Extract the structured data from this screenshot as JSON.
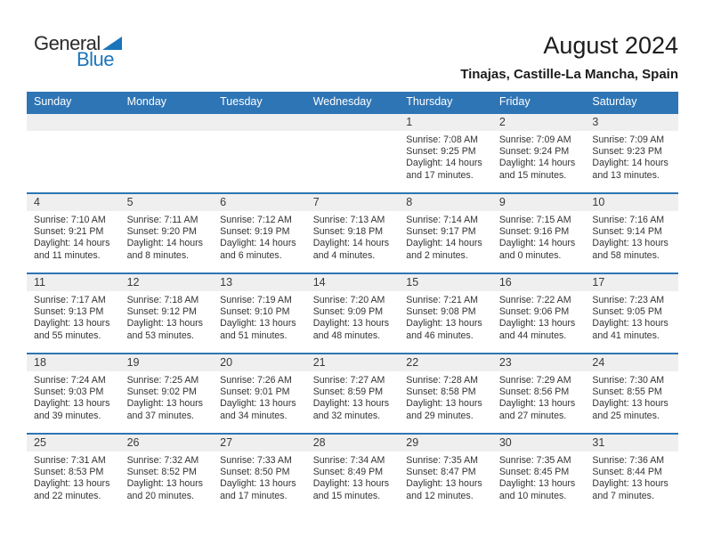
{
  "logo": {
    "word1": "General",
    "word2": "Blue"
  },
  "header": {
    "title": "August 2024",
    "subtitle": "Tinajas, Castille-La Mancha, Spain"
  },
  "weekdays": [
    "Sunday",
    "Monday",
    "Tuesday",
    "Wednesday",
    "Thursday",
    "Friday",
    "Saturday"
  ],
  "colors": {
    "header_blue": "#2E75B5",
    "accent_blue": "#1B75BB",
    "band_gray": "#EFEFEF",
    "text_dark": "#333333"
  },
  "weeks": [
    [
      null,
      null,
      null,
      null,
      {
        "day": "1",
        "sunrise": "Sunrise: 7:08 AM",
        "sunset": "Sunset: 9:25 PM",
        "daylight": "Daylight: 14 hours and 17 minutes."
      },
      {
        "day": "2",
        "sunrise": "Sunrise: 7:09 AM",
        "sunset": "Sunset: 9:24 PM",
        "daylight": "Daylight: 14 hours and 15 minutes."
      },
      {
        "day": "3",
        "sunrise": "Sunrise: 7:09 AM",
        "sunset": "Sunset: 9:23 PM",
        "daylight": "Daylight: 14 hours and 13 minutes."
      }
    ],
    [
      {
        "day": "4",
        "sunrise": "Sunrise: 7:10 AM",
        "sunset": "Sunset: 9:21 PM",
        "daylight": "Daylight: 14 hours and 11 minutes."
      },
      {
        "day": "5",
        "sunrise": "Sunrise: 7:11 AM",
        "sunset": "Sunset: 9:20 PM",
        "daylight": "Daylight: 14 hours and 8 minutes."
      },
      {
        "day": "6",
        "sunrise": "Sunrise: 7:12 AM",
        "sunset": "Sunset: 9:19 PM",
        "daylight": "Daylight: 14 hours and 6 minutes."
      },
      {
        "day": "7",
        "sunrise": "Sunrise: 7:13 AM",
        "sunset": "Sunset: 9:18 PM",
        "daylight": "Daylight: 14 hours and 4 minutes."
      },
      {
        "day": "8",
        "sunrise": "Sunrise: 7:14 AM",
        "sunset": "Sunset: 9:17 PM",
        "daylight": "Daylight: 14 hours and 2 minutes."
      },
      {
        "day": "9",
        "sunrise": "Sunrise: 7:15 AM",
        "sunset": "Sunset: 9:16 PM",
        "daylight": "Daylight: 14 hours and 0 minutes."
      },
      {
        "day": "10",
        "sunrise": "Sunrise: 7:16 AM",
        "sunset": "Sunset: 9:14 PM",
        "daylight": "Daylight: 13 hours and 58 minutes."
      }
    ],
    [
      {
        "day": "11",
        "sunrise": "Sunrise: 7:17 AM",
        "sunset": "Sunset: 9:13 PM",
        "daylight": "Daylight: 13 hours and 55 minutes."
      },
      {
        "day": "12",
        "sunrise": "Sunrise: 7:18 AM",
        "sunset": "Sunset: 9:12 PM",
        "daylight": "Daylight: 13 hours and 53 minutes."
      },
      {
        "day": "13",
        "sunrise": "Sunrise: 7:19 AM",
        "sunset": "Sunset: 9:10 PM",
        "daylight": "Daylight: 13 hours and 51 minutes."
      },
      {
        "day": "14",
        "sunrise": "Sunrise: 7:20 AM",
        "sunset": "Sunset: 9:09 PM",
        "daylight": "Daylight: 13 hours and 48 minutes."
      },
      {
        "day": "15",
        "sunrise": "Sunrise: 7:21 AM",
        "sunset": "Sunset: 9:08 PM",
        "daylight": "Daylight: 13 hours and 46 minutes."
      },
      {
        "day": "16",
        "sunrise": "Sunrise: 7:22 AM",
        "sunset": "Sunset: 9:06 PM",
        "daylight": "Daylight: 13 hours and 44 minutes."
      },
      {
        "day": "17",
        "sunrise": "Sunrise: 7:23 AM",
        "sunset": "Sunset: 9:05 PM",
        "daylight": "Daylight: 13 hours and 41 minutes."
      }
    ],
    [
      {
        "day": "18",
        "sunrise": "Sunrise: 7:24 AM",
        "sunset": "Sunset: 9:03 PM",
        "daylight": "Daylight: 13 hours and 39 minutes."
      },
      {
        "day": "19",
        "sunrise": "Sunrise: 7:25 AM",
        "sunset": "Sunset: 9:02 PM",
        "daylight": "Daylight: 13 hours and 37 minutes."
      },
      {
        "day": "20",
        "sunrise": "Sunrise: 7:26 AM",
        "sunset": "Sunset: 9:01 PM",
        "daylight": "Daylight: 13 hours and 34 minutes."
      },
      {
        "day": "21",
        "sunrise": "Sunrise: 7:27 AM",
        "sunset": "Sunset: 8:59 PM",
        "daylight": "Daylight: 13 hours and 32 minutes."
      },
      {
        "day": "22",
        "sunrise": "Sunrise: 7:28 AM",
        "sunset": "Sunset: 8:58 PM",
        "daylight": "Daylight: 13 hours and 29 minutes."
      },
      {
        "day": "23",
        "sunrise": "Sunrise: 7:29 AM",
        "sunset": "Sunset: 8:56 PM",
        "daylight": "Daylight: 13 hours and 27 minutes."
      },
      {
        "day": "24",
        "sunrise": "Sunrise: 7:30 AM",
        "sunset": "Sunset: 8:55 PM",
        "daylight": "Daylight: 13 hours and 25 minutes."
      }
    ],
    [
      {
        "day": "25",
        "sunrise": "Sunrise: 7:31 AM",
        "sunset": "Sunset: 8:53 PM",
        "daylight": "Daylight: 13 hours and 22 minutes."
      },
      {
        "day": "26",
        "sunrise": "Sunrise: 7:32 AM",
        "sunset": "Sunset: 8:52 PM",
        "daylight": "Daylight: 13 hours and 20 minutes."
      },
      {
        "day": "27",
        "sunrise": "Sunrise: 7:33 AM",
        "sunset": "Sunset: 8:50 PM",
        "daylight": "Daylight: 13 hours and 17 minutes."
      },
      {
        "day": "28",
        "sunrise": "Sunrise: 7:34 AM",
        "sunset": "Sunset: 8:49 PM",
        "daylight": "Daylight: 13 hours and 15 minutes."
      },
      {
        "day": "29",
        "sunrise": "Sunrise: 7:35 AM",
        "sunset": "Sunset: 8:47 PM",
        "daylight": "Daylight: 13 hours and 12 minutes."
      },
      {
        "day": "30",
        "sunrise": "Sunrise: 7:35 AM",
        "sunset": "Sunset: 8:45 PM",
        "daylight": "Daylight: 13 hours and 10 minutes."
      },
      {
        "day": "31",
        "sunrise": "Sunrise: 7:36 AM",
        "sunset": "Sunset: 8:44 PM",
        "daylight": "Daylight: 13 hours and 7 minutes."
      }
    ]
  ]
}
